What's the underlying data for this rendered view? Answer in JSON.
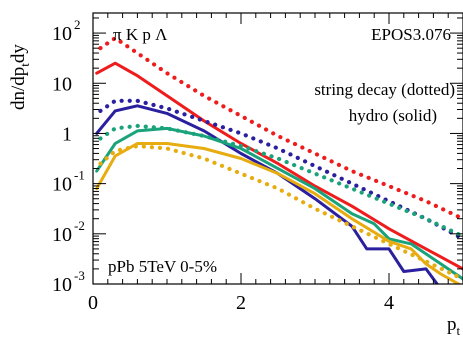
{
  "chart_data": {
    "type": "line",
    "yscale": "log",
    "xlim": [
      0,
      5
    ],
    "ylim_exp": [
      -3,
      2.4
    ],
    "particles_label": "π K p Λ",
    "model_label": "EPOS3.076",
    "legend_line1": "string decay (dotted)",
    "legend_line2": "hydro (solid)",
    "system_label": "pPb 5TeV 0-5%",
    "ylabel_main": "dn/dp",
    "ylabel_sub": "t",
    "ylabel_tail": "dy",
    "xlabel_main": "p",
    "xlabel_sub": "t",
    "x_ticks": [
      {
        "v": 0,
        "label": "0"
      },
      {
        "v": 2,
        "label": "2"
      },
      {
        "v": 4,
        "label": "4"
      }
    ],
    "y_ticks": [
      {
        "e": 2,
        "base": "10",
        "exp": "2"
      },
      {
        "e": 1,
        "base": "10",
        "exp": ""
      },
      {
        "e": 0,
        "base": "1",
        "exp": ""
      },
      {
        "e": -1,
        "base": "10",
        "exp": "-1"
      },
      {
        "e": -2,
        "base": "10",
        "exp": "-2"
      },
      {
        "e": -3,
        "base": "10",
        "exp": "-3"
      }
    ],
    "series": [
      {
        "color": "#ee1c1c",
        "style": "solid",
        "x": [
          0.05,
          0.3,
          0.6,
          1.0,
          1.5,
          2.0,
          2.5,
          3.0,
          3.5,
          4.0,
          4.5,
          5.0
        ],
        "log10y": [
          1.2,
          1.4,
          1.15,
          0.75,
          0.25,
          -0.2,
          -0.6,
          -1.05,
          -1.45,
          -1.9,
          -2.3,
          -2.7
        ]
      },
      {
        "color": "#ee1c1c",
        "style": "dotted",
        "x": [
          0.1,
          0.3,
          0.6,
          1.0,
          1.5,
          2.0,
          2.5,
          3.0,
          3.5,
          4.0,
          4.5,
          5.0
        ],
        "log10y": [
          1.7,
          1.9,
          1.6,
          1.2,
          0.75,
          0.35,
          -0.05,
          -0.4,
          -0.75,
          -1.05,
          -1.35,
          -1.7
        ]
      },
      {
        "color": "#2a1f9e",
        "style": "solid",
        "x": [
          0.05,
          0.3,
          0.6,
          1.0,
          1.5,
          2.0,
          2.5,
          3.0,
          3.5,
          3.7,
          4.0,
          4.2,
          4.5,
          4.7,
          5.0
        ],
        "log10y": [
          0.0,
          0.45,
          0.55,
          0.4,
          0.05,
          -0.4,
          -0.8,
          -1.3,
          -1.85,
          -2.3,
          -2.3,
          -2.75,
          -2.7,
          -3.1,
          -3.1
        ]
      },
      {
        "color": "#2a1f9e",
        "style": "dotted",
        "x": [
          0.1,
          0.3,
          0.6,
          1.0,
          1.5,
          2.0,
          2.5,
          3.0,
          3.5,
          4.0,
          4.5,
          5.0
        ],
        "log10y": [
          0.45,
          0.65,
          0.65,
          0.5,
          0.25,
          0.0,
          -0.3,
          -0.65,
          -1.0,
          -1.35,
          -1.7,
          -2.1
        ]
      },
      {
        "color": "#1aa37a",
        "style": "solid",
        "x": [
          0.05,
          0.3,
          0.6,
          1.0,
          1.5,
          2.0,
          2.5,
          3.0,
          3.5,
          3.8,
          4.0,
          4.3,
          4.5,
          4.7,
          5.0
        ],
        "log10y": [
          -0.75,
          -0.2,
          0.05,
          0.1,
          -0.05,
          -0.3,
          -0.7,
          -1.1,
          -1.6,
          -1.8,
          -2.1,
          -2.2,
          -2.4,
          -2.6,
          -2.9
        ]
      },
      {
        "color": "#1aa37a",
        "style": "dotted",
        "x": [
          0.1,
          0.3,
          0.6,
          1.0,
          1.5,
          2.0,
          2.5,
          3.0,
          3.5,
          4.0,
          4.5,
          5.0
        ],
        "log10y": [
          -0.1,
          0.1,
          0.15,
          0.1,
          -0.05,
          -0.25,
          -0.5,
          -0.8,
          -1.1,
          -1.4,
          -1.7,
          -2.05
        ]
      },
      {
        "color": "#e6ac10",
        "style": "solid",
        "x": [
          0.05,
          0.3,
          0.6,
          1.0,
          1.5,
          2.0,
          2.5,
          3.0,
          3.5,
          4.0,
          4.3,
          4.5,
          4.7,
          5.0
        ],
        "log10y": [
          -1.1,
          -0.45,
          -0.2,
          -0.2,
          -0.3,
          -0.5,
          -0.8,
          -1.2,
          -1.7,
          -2.15,
          -2.3,
          -2.6,
          -2.8,
          -3.05
        ]
      },
      {
        "color": "#e6ac10",
        "style": "dotted",
        "x": [
          0.1,
          0.3,
          0.6,
          1.0,
          1.5,
          2.0,
          2.5,
          3.0,
          3.5,
          4.0,
          4.5,
          5.0
        ],
        "log10y": [
          -0.6,
          -0.35,
          -0.25,
          -0.3,
          -0.5,
          -0.8,
          -1.1,
          -1.5,
          -1.85,
          -2.2,
          -2.55,
          -2.9
        ]
      }
    ]
  }
}
